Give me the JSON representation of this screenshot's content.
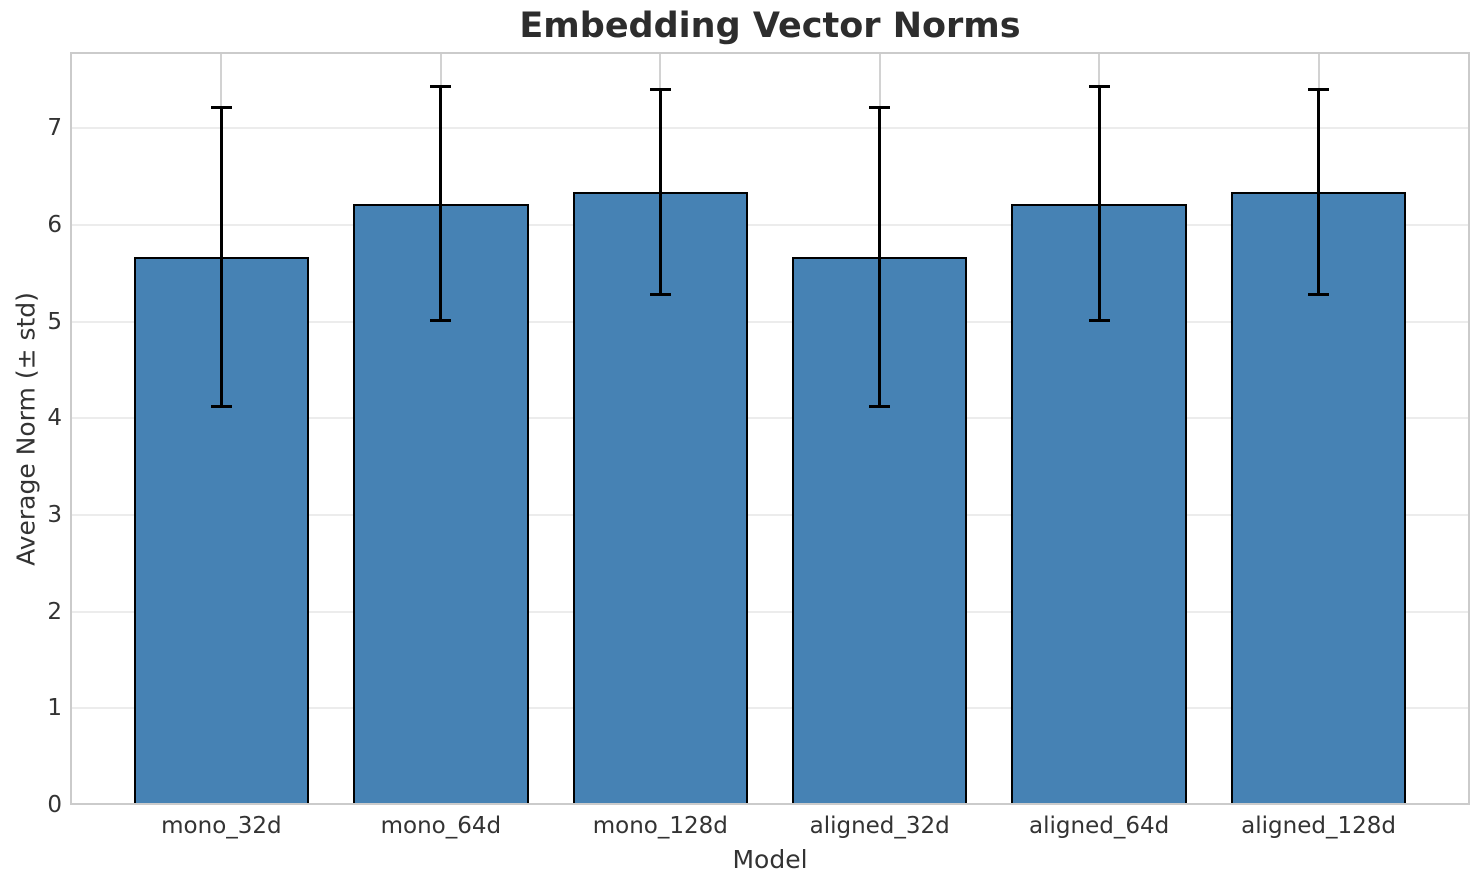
{
  "chart_data": {
    "type": "bar",
    "title": "Embedding Vector Norms",
    "xlabel": "Model",
    "ylabel": "Average Norm (± std)",
    "categories": [
      "mono_32d",
      "mono_64d",
      "mono_128d",
      "aligned_32d",
      "aligned_64d",
      "aligned_128d"
    ],
    "values": [
      5.67,
      6.22,
      6.34,
      5.67,
      6.22,
      6.34
    ],
    "errors": [
      1.55,
      1.21,
      1.06,
      1.55,
      1.21,
      1.06
    ],
    "yticks": [
      0,
      1,
      2,
      3,
      4,
      5,
      6,
      7
    ],
    "ylim": [
      0,
      7.79
    ],
    "xlim": [
      -0.69,
      5.69
    ],
    "bar_width": 0.8,
    "grid": true,
    "legend_position": "none",
    "colors": {
      "bar_fill": "#4682b4",
      "bar_edge": "#000000",
      "error_bar": "#000000",
      "grid_horizontal": "#ececec",
      "grid_vertical": "#d2d2d2",
      "spine": "#cbcbcb",
      "title_text": "#2d2d2d",
      "label_text": "#333333"
    }
  }
}
